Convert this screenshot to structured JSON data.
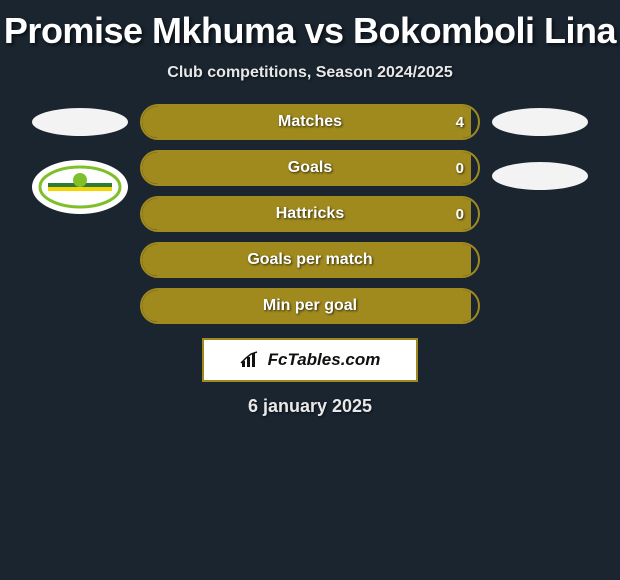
{
  "title": "Promise Mkhuma vs Bokomboli Lina",
  "subtitle": "Club competitions, Season 2024/2025",
  "date": "6 january 2025",
  "brand": "FcTables.com",
  "colors": {
    "bg": "#1a2530",
    "accent": "#a08a1e",
    "text": "#ffffff",
    "badge_left_ring": "#7fbf2a",
    "badge_left_stripe1": "#2a7b3a",
    "badge_left_stripe2": "#f5d400"
  },
  "left_badges": [
    {
      "type": "blank"
    },
    {
      "type": "club"
    }
  ],
  "right_badges": [
    {
      "type": "blank"
    },
    {
      "type": "blank"
    }
  ],
  "stats": [
    {
      "label": "Matches",
      "value": "4",
      "fill_pct": 98
    },
    {
      "label": "Goals",
      "value": "0",
      "fill_pct": 98
    },
    {
      "label": "Hattricks",
      "value": "0",
      "fill_pct": 98
    },
    {
      "label": "Goals per match",
      "value": "",
      "fill_pct": 98
    },
    {
      "label": "Min per goal",
      "value": "",
      "fill_pct": 98
    }
  ]
}
